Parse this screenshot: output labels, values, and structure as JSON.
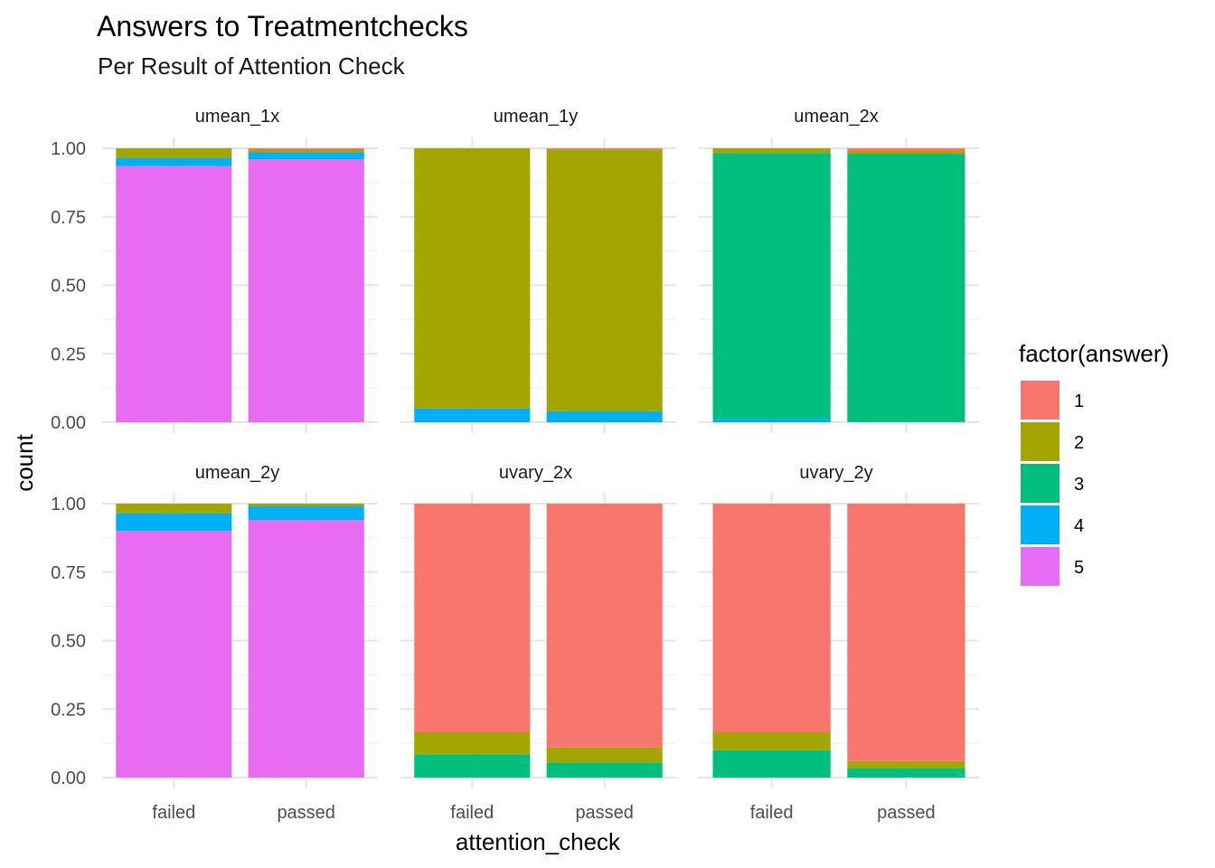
{
  "chart_data": {
    "type": "bar",
    "stacking": "fill",
    "title": "Answers to Treatmentchecks",
    "subtitle": "Per Result of Attention Check",
    "xlabel": "attention_check",
    "ylabel": "count",
    "ylim": [
      0,
      1
    ],
    "y_ticks": [
      "0.00",
      "0.25",
      "0.50",
      "0.75",
      "1.00"
    ],
    "categories": [
      "failed",
      "passed"
    ],
    "grid": true,
    "legend": {
      "title": "factor(answer)",
      "placement": "right",
      "entries": [
        {
          "label": "1",
          "color": "#F8766D"
        },
        {
          "label": "2",
          "color": "#A3A500"
        },
        {
          "label": "3",
          "color": "#00BF7D"
        },
        {
          "label": "4",
          "color": "#00B0F6"
        },
        {
          "label": "5",
          "color": "#E76BF3"
        }
      ]
    },
    "stack_order_bottom_to_top": [
      "5",
      "4",
      "3",
      "2",
      "1"
    ],
    "facets": [
      {
        "name": "umean_1x",
        "bars": [
          {
            "category": "failed",
            "values": {
              "1": 0.0,
              "2": 0.035,
              "3": 0.0,
              "4": 0.03,
              "5": 0.935
            }
          },
          {
            "category": "passed",
            "values": {
              "1": 0.005,
              "2": 0.01,
              "3": 0.0,
              "4": 0.025,
              "5": 0.96
            }
          }
        ]
      },
      {
        "name": "umean_1y",
        "bars": [
          {
            "category": "failed",
            "values": {
              "1": 0.0,
              "2": 0.95,
              "3": 0.0,
              "4": 0.05,
              "5": 0.0
            }
          },
          {
            "category": "passed",
            "values": {
              "1": 0.004,
              "2": 0.956,
              "3": 0.0,
              "4": 0.04,
              "5": 0.0
            }
          }
        ]
      },
      {
        "name": "umean_2x",
        "bars": [
          {
            "category": "failed",
            "values": {
              "1": 0.0,
              "2": 0.017,
              "3": 0.97,
              "4": 0.013,
              "5": 0.0
            }
          },
          {
            "category": "passed",
            "values": {
              "1": 0.01,
              "2": 0.01,
              "3": 0.977,
              "4": 0.003,
              "5": 0.0
            }
          }
        ]
      },
      {
        "name": "umean_2y",
        "bars": [
          {
            "category": "failed",
            "values": {
              "1": 0.0,
              "2": 0.035,
              "3": 0.0,
              "4": 0.065,
              "5": 0.9
            }
          },
          {
            "category": "passed",
            "values": {
              "1": 0.0,
              "2": 0.01,
              "3": 0.0,
              "4": 0.05,
              "5": 0.94
            }
          }
        ]
      },
      {
        "name": "uvary_2x",
        "bars": [
          {
            "category": "failed",
            "values": {
              "1": 0.835,
              "2": 0.08,
              "3": 0.085,
              "4": 0.0,
              "5": 0.0
            }
          },
          {
            "category": "passed",
            "values": {
              "1": 0.89,
              "2": 0.055,
              "3": 0.055,
              "4": 0.0,
              "5": 0.0
            }
          }
        ]
      },
      {
        "name": "uvary_2y",
        "bars": [
          {
            "category": "failed",
            "values": {
              "1": 0.835,
              "2": 0.065,
              "3": 0.1,
              "4": 0.0,
              "5": 0.0
            }
          },
          {
            "category": "passed",
            "values": {
              "1": 0.94,
              "2": 0.025,
              "3": 0.035,
              "4": 0.0,
              "5": 0.0
            }
          }
        ]
      }
    ]
  }
}
